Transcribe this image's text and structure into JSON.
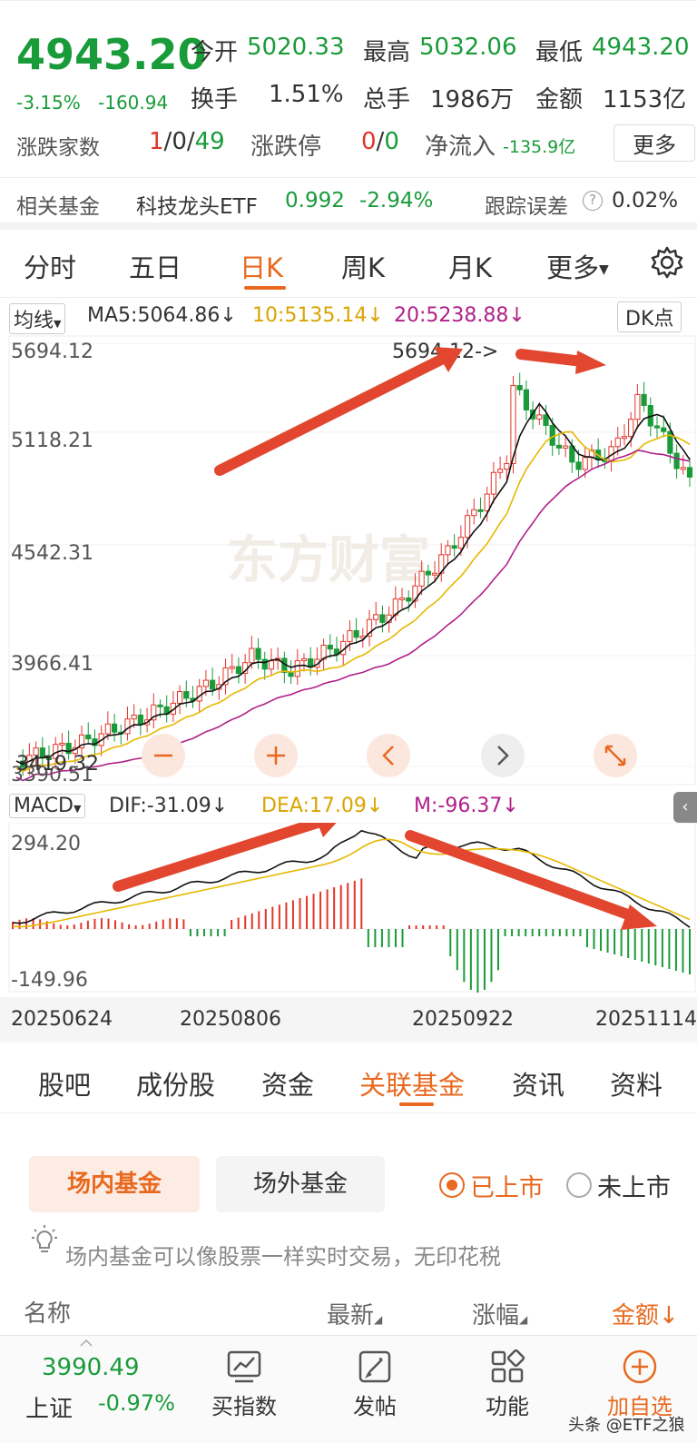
{
  "quote": {
    "price": "4943.20",
    "change_pct": "-3.15%",
    "change_abs": "-160.94",
    "open_label": "今开",
    "open": "5020.33",
    "high_label": "最高",
    "high": "5032.06",
    "low_label": "最低",
    "low": "4943.20",
    "turnover_label": "换手",
    "turnover": "1.51%",
    "volume_label": "总手",
    "volume": "1986万",
    "amount_label": "金额",
    "amount": "1153亿",
    "breadth_label": "涨跌家数",
    "breadth_up": "1",
    "breadth_sep1": "/",
    "breadth_flat": "0",
    "breadth_sep2": "/",
    "breadth_down": "49",
    "limit_label": "涨跌停",
    "limit_up": "0",
    "limit_sep": "/",
    "limit_down": "0",
    "netflow_label": "净流入",
    "netflow": "-135.9亿",
    "more_label": "更多"
  },
  "fund": {
    "label": "相关基金",
    "name": "科技龙头ETF",
    "price": "0.992",
    "change": "-2.94%",
    "tracking_label": "跟踪误差",
    "tracking_value": "0.02%"
  },
  "period_tabs": [
    "分时",
    "五日",
    "日K",
    "周K",
    "月K",
    "更多"
  ],
  "ma": {
    "selector": "均线",
    "ma5": "MA5:5064.86↓",
    "ma10": "10:5135.14↓",
    "ma20": "20:5238.88↓",
    "dk": "DK点"
  },
  "kchart": {
    "y_ticks": [
      "5694.12",
      "5118.21",
      "4542.31",
      "3966.41",
      "3390.51"
    ],
    "high_annotation": "5694.12->",
    "low_annotation": "3419.32",
    "watermark": "东方财富"
  },
  "macd": {
    "selector": "MACD",
    "dif": "DIF:-31.09↓",
    "dea": "DEA:17.09↓",
    "m": "M:-96.37↓",
    "y_top": "294.20",
    "y_bottom": "-149.96"
  },
  "dates": [
    "20250624",
    "20250806",
    "20250922",
    "20251114"
  ],
  "sub_tabs": [
    "股吧",
    "成份股",
    "资金",
    "关联基金",
    "资讯",
    "资料"
  ],
  "fund_filter": {
    "chip_onexchange": "场内基金",
    "chip_otc": "场外基金",
    "radio_listed": "已上市",
    "radio_unlisted": "未上市",
    "tip": "场内基金可以像股票一样实时交易，无印花税"
  },
  "table_header": {
    "name": "名称",
    "latest": "最新",
    "change": "涨幅",
    "amount": "金额↓"
  },
  "bottom": {
    "index_value": "3990.49",
    "index_name": "上证",
    "index_change": "-0.97%",
    "buy_index": "买指数",
    "post": "发帖",
    "function": "功能",
    "add_watch": "加自选"
  },
  "credit": "头条 @ETF之狼",
  "colors": {
    "up": "#e2362a",
    "down": "#1a9b3a",
    "accent": "#e8691f",
    "ma5": "#111111",
    "ma10": "#e6b800",
    "ma20": "#b0208a"
  }
}
